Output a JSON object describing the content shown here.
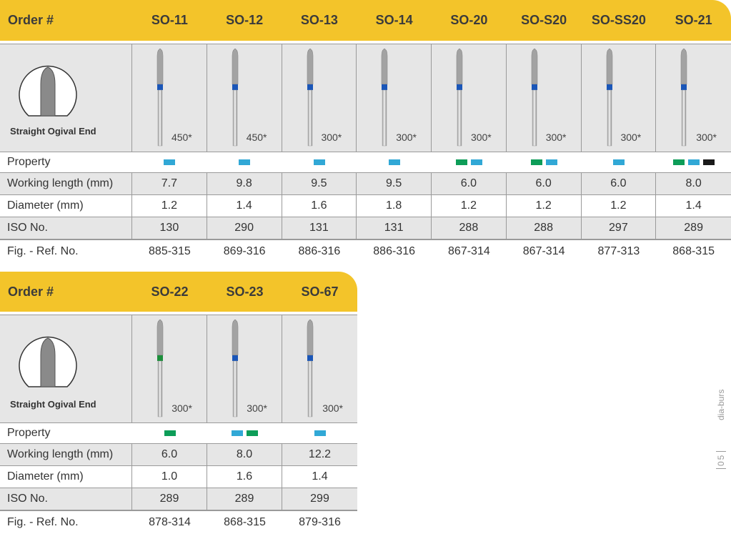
{
  "colors": {
    "header": "#f3c42a",
    "row_grey": "#e6e6e6",
    "blue": "#31a8d6",
    "green": "#0d9d58",
    "black": "#1a1a1a",
    "band_blue": "#1a56b8",
    "band_green": "#1c8f3b"
  },
  "table1": {
    "order_label": "Order #",
    "shape_label": "Straight Ogival End",
    "property_label": "Property",
    "working_length_label": "Working length (mm)",
    "diameter_label": "Diameter (mm)",
    "iso_label": "ISO No.",
    "ref_label": "Fig. - Ref. No.",
    "products": [
      {
        "code": "SO-11",
        "speed": "450*",
        "properties": [
          "blue"
        ],
        "working_length": "7.7",
        "diameter": "1.2",
        "iso": "130",
        "ref": "885-315",
        "band": "blue"
      },
      {
        "code": "SO-12",
        "speed": "450*",
        "properties": [
          "blue"
        ],
        "working_length": "9.8",
        "diameter": "1.4",
        "iso": "290",
        "ref": "869-316",
        "band": "blue"
      },
      {
        "code": "SO-13",
        "speed": "300*",
        "properties": [
          "blue"
        ],
        "working_length": "9.5",
        "diameter": "1.6",
        "iso": "131",
        "ref": "886-316",
        "band": "blue"
      },
      {
        "code": "SO-14",
        "speed": "300*",
        "properties": [
          "blue"
        ],
        "working_length": "9.5",
        "diameter": "1.8",
        "iso": "131",
        "ref": "886-316",
        "band": "blue"
      },
      {
        "code": "SO-20",
        "speed": "300*",
        "properties": [
          "green",
          "blue"
        ],
        "working_length": "6.0",
        "diameter": "1.2",
        "iso": "288",
        "ref": "867-314",
        "band": "blue"
      },
      {
        "code": "SO-S20",
        "speed": "300*",
        "properties": [
          "green",
          "blue"
        ],
        "working_length": "6.0",
        "diameter": "1.2",
        "iso": "288",
        "ref": "867-314",
        "band": "blue"
      },
      {
        "code": "SO-SS20",
        "speed": "300*",
        "properties": [
          "blue"
        ],
        "working_length": "6.0",
        "diameter": "1.2",
        "iso": "297",
        "ref": "877-313",
        "band": "blue"
      },
      {
        "code": "SO-21",
        "speed": "300*",
        "properties": [
          "green",
          "blue",
          "black"
        ],
        "working_length": "8.0",
        "diameter": "1.4",
        "iso": "289",
        "ref": "868-315",
        "band": "blue"
      }
    ]
  },
  "table2": {
    "order_label": "Order #",
    "shape_label": "Straight Ogival End",
    "property_label": "Property",
    "working_length_label": "Working length (mm)",
    "diameter_label": "Diameter (mm)",
    "iso_label": "ISO No.",
    "ref_label": "Fig. - Ref. No.",
    "products": [
      {
        "code": "SO-22",
        "speed": "300*",
        "properties": [
          "green"
        ],
        "working_length": "6.0",
        "diameter": "1.0",
        "iso": "289",
        "ref": "878-314",
        "band": "green"
      },
      {
        "code": "SO-23",
        "speed": "300*",
        "properties": [
          "blue",
          "green"
        ],
        "working_length": "8.0",
        "diameter": "1.6",
        "iso": "289",
        "ref": "868-315",
        "band": "blue"
      },
      {
        "code": "SO-67",
        "speed": "300*",
        "properties": [
          "blue"
        ],
        "working_length": "12.2",
        "diameter": "1.4",
        "iso": "299",
        "ref": "879-316",
        "band": "blue"
      }
    ]
  },
  "side": {
    "category": "dia-burs",
    "page": "05"
  }
}
